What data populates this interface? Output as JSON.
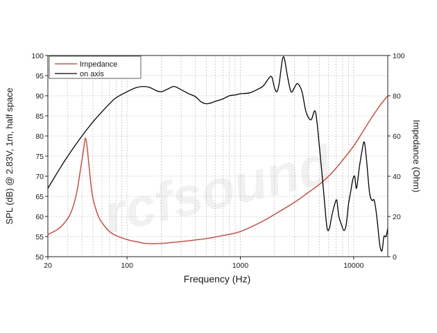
{
  "chart_data": {
    "type": "line",
    "xlabel": "Frequency (Hz)",
    "ylabel_left": "SPL (dB) @ 2.83V, 1m, half space",
    "ylabel_right": "Impedance (Ohm)",
    "x_scale": "log",
    "xlim": [
      20,
      20000
    ],
    "ylim_left": [
      50,
      100
    ],
    "ylim_right": [
      0,
      100
    ],
    "x_ticks": [
      {
        "value": 20,
        "label": "20"
      },
      {
        "value": 100,
        "label": "100"
      },
      {
        "value": 1000,
        "label": "1000"
      },
      {
        "value": 10000,
        "label": "10000"
      }
    ],
    "y_ticks_left": [
      {
        "value": 50,
        "label": "50"
      },
      {
        "value": 55,
        "label": "55"
      },
      {
        "value": 60,
        "label": "60"
      },
      {
        "value": 65,
        "label": "65"
      },
      {
        "value": 70,
        "label": "70"
      },
      {
        "value": 75,
        "label": "75"
      },
      {
        "value": 80,
        "label": "80"
      },
      {
        "value": 85,
        "label": "85"
      },
      {
        "value": 90,
        "label": "90"
      },
      {
        "value": 95,
        "label": "95"
      },
      {
        "value": 100,
        "label": "100"
      }
    ],
    "y_ticks_right": [
      {
        "value": 0,
        "label": "0"
      },
      {
        "value": 20,
        "label": "20"
      },
      {
        "value": 40,
        "label": "40"
      },
      {
        "value": 60,
        "label": "60"
      },
      {
        "value": 80,
        "label": "80"
      },
      {
        "value": 100,
        "label": "100"
      }
    ],
    "grid": true,
    "legend": "top-left",
    "series": [
      {
        "name": "Impedance",
        "color": "#e0301e",
        "axis": "right",
        "points": [
          [
            20,
            11
          ],
          [
            25,
            14
          ],
          [
            30,
            19
          ],
          [
            33,
            24
          ],
          [
            36,
            32
          ],
          [
            38,
            40
          ],
          [
            40,
            48
          ],
          [
            41.5,
            54
          ],
          [
            43,
            59
          ],
          [
            44.5,
            54
          ],
          [
            46,
            46
          ],
          [
            48,
            36
          ],
          [
            50,
            29
          ],
          [
            55,
            21
          ],
          [
            60,
            17
          ],
          [
            70,
            12.5
          ],
          [
            80,
            10.5
          ],
          [
            100,
            8.5
          ],
          [
            120,
            7.5
          ],
          [
            150,
            6.5
          ],
          [
            200,
            6.6
          ],
          [
            300,
            7.5
          ],
          [
            500,
            9
          ],
          [
            700,
            10.5
          ],
          [
            1000,
            12.5
          ],
          [
            1500,
            17
          ],
          [
            2000,
            21
          ],
          [
            3000,
            27
          ],
          [
            4000,
            32
          ],
          [
            5000,
            36
          ],
          [
            6000,
            40
          ],
          [
            7000,
            44
          ],
          [
            8000,
            48
          ],
          [
            10000,
            55
          ],
          [
            12000,
            62
          ],
          [
            14000,
            68
          ],
          [
            17000,
            75
          ],
          [
            20000,
            80
          ]
        ]
      },
      {
        "name": "on axis",
        "color": "#000000",
        "axis": "left",
        "points": [
          [
            20,
            67
          ],
          [
            25,
            71.5
          ],
          [
            30,
            75
          ],
          [
            40,
            80
          ],
          [
            50,
            83.5
          ],
          [
            60,
            86
          ],
          [
            70,
            88
          ],
          [
            80,
            89.5
          ],
          [
            100,
            91
          ],
          [
            120,
            92
          ],
          [
            140,
            92.3
          ],
          [
            160,
            92
          ],
          [
            180,
            91.3
          ],
          [
            200,
            91
          ],
          [
            230,
            91.7
          ],
          [
            260,
            92.3
          ],
          [
            300,
            91.5
          ],
          [
            350,
            90.5
          ],
          [
            400,
            89.8
          ],
          [
            450,
            88.5
          ],
          [
            500,
            88
          ],
          [
            550,
            88.2
          ],
          [
            600,
            88.6
          ],
          [
            700,
            89.2
          ],
          [
            800,
            90
          ],
          [
            900,
            90.2
          ],
          [
            1000,
            90.5
          ],
          [
            1200,
            90.7
          ],
          [
            1400,
            91.5
          ],
          [
            1600,
            92.5
          ],
          [
            1800,
            94.5
          ],
          [
            1900,
            94.6
          ],
          [
            2000,
            92
          ],
          [
            2100,
            91
          ],
          [
            2200,
            93
          ],
          [
            2350,
            99
          ],
          [
            2450,
            99.2
          ],
          [
            2600,
            95
          ],
          [
            2800,
            91
          ],
          [
            3000,
            92
          ],
          [
            3200,
            93
          ],
          [
            3500,
            91
          ],
          [
            3800,
            86
          ],
          [
            4200,
            84
          ],
          [
            4600,
            86
          ],
          [
            5000,
            77
          ],
          [
            5400,
            67
          ],
          [
            5800,
            57.5
          ],
          [
            6100,
            57
          ],
          [
            6400,
            60
          ],
          [
            6800,
            63
          ],
          [
            7100,
            64
          ],
          [
            7400,
            60
          ],
          [
            7800,
            58
          ],
          [
            8200,
            56.5
          ],
          [
            8600,
            58
          ],
          [
            9000,
            63
          ],
          [
            9400,
            66
          ],
          [
            9800,
            69
          ],
          [
            10200,
            70
          ],
          [
            10600,
            67
          ],
          [
            11200,
            72
          ],
          [
            11800,
            76
          ],
          [
            12400,
            78.5
          ],
          [
            13000,
            74
          ],
          [
            13800,
            66
          ],
          [
            14500,
            64
          ],
          [
            15200,
            64
          ],
          [
            16000,
            60
          ],
          [
            17000,
            53
          ],
          [
            17800,
            51.5
          ],
          [
            18500,
            55
          ],
          [
            19300,
            55
          ],
          [
            20000,
            57
          ]
        ]
      }
    ]
  }
}
